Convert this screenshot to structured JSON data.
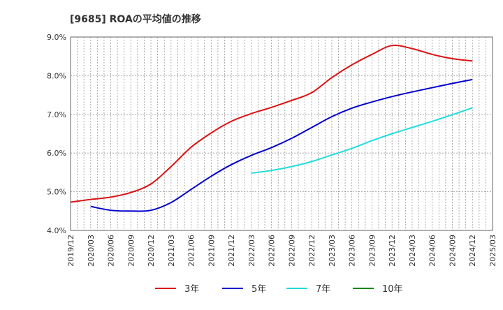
{
  "chart_data": {
    "type": "line",
    "title": "[9685]  ROAの平均値の推移",
    "xlabel": "",
    "ylabel": "",
    "ylim": [
      4.0,
      9.0
    ],
    "yticks": [
      "4.0%",
      "5.0%",
      "6.0%",
      "7.0%",
      "8.0%",
      "9.0%"
    ],
    "xticks": [
      "2019/12",
      "2020/03",
      "2020/06",
      "2020/09",
      "2020/12",
      "2021/03",
      "2021/06",
      "2021/09",
      "2021/12",
      "2022/03",
      "2022/06",
      "2022/09",
      "2022/12",
      "2023/03",
      "2023/06",
      "2023/09",
      "2023/12",
      "2024/03",
      "2024/06",
      "2024/09",
      "2024/12",
      "2025/03"
    ],
    "grid": true,
    "legend_position": "bottom",
    "series": [
      {
        "name": "3年",
        "color": "#dd1111",
        "x": [
          "2019/12",
          "2020/03",
          "2020/06",
          "2020/09",
          "2020/12",
          "2021/03",
          "2021/06",
          "2021/09",
          "2021/12",
          "2022/03",
          "2022/06",
          "2022/09",
          "2022/12",
          "2023/03",
          "2023/06",
          "2023/09",
          "2023/12",
          "2024/03",
          "2024/06",
          "2024/09",
          "2024/12"
        ],
        "values": [
          4.73,
          4.8,
          4.86,
          4.98,
          5.2,
          5.65,
          6.15,
          6.52,
          6.82,
          7.02,
          7.18,
          7.36,
          7.56,
          7.95,
          8.28,
          8.55,
          8.78,
          8.7,
          8.55,
          8.44,
          8.38
        ]
      },
      {
        "name": "5年",
        "color": "#0000cc",
        "x": [
          "2020/03",
          "2020/06",
          "2020/09",
          "2020/12",
          "2021/03",
          "2021/06",
          "2021/09",
          "2021/12",
          "2022/03",
          "2022/06",
          "2022/09",
          "2022/12",
          "2023/03",
          "2023/06",
          "2023/09",
          "2023/12",
          "2024/03",
          "2024/06",
          "2024/09",
          "2024/12"
        ],
        "values": [
          4.62,
          4.52,
          4.5,
          4.52,
          4.72,
          5.06,
          5.4,
          5.7,
          5.94,
          6.14,
          6.38,
          6.66,
          6.94,
          7.16,
          7.32,
          7.46,
          7.58,
          7.69,
          7.8,
          7.9
        ]
      },
      {
        "name": "7年",
        "color": "#22dddd",
        "x": [
          "2022/03",
          "2022/06",
          "2022/09",
          "2022/12",
          "2023/03",
          "2023/06",
          "2023/09",
          "2023/12",
          "2024/03",
          "2024/06",
          "2024/09",
          "2024/12"
        ],
        "values": [
          5.48,
          5.55,
          5.65,
          5.78,
          5.95,
          6.12,
          6.32,
          6.5,
          6.66,
          6.82,
          6.99,
          7.17
        ]
      },
      {
        "name": "10年",
        "color": "#118811",
        "x": [],
        "values": []
      }
    ]
  }
}
